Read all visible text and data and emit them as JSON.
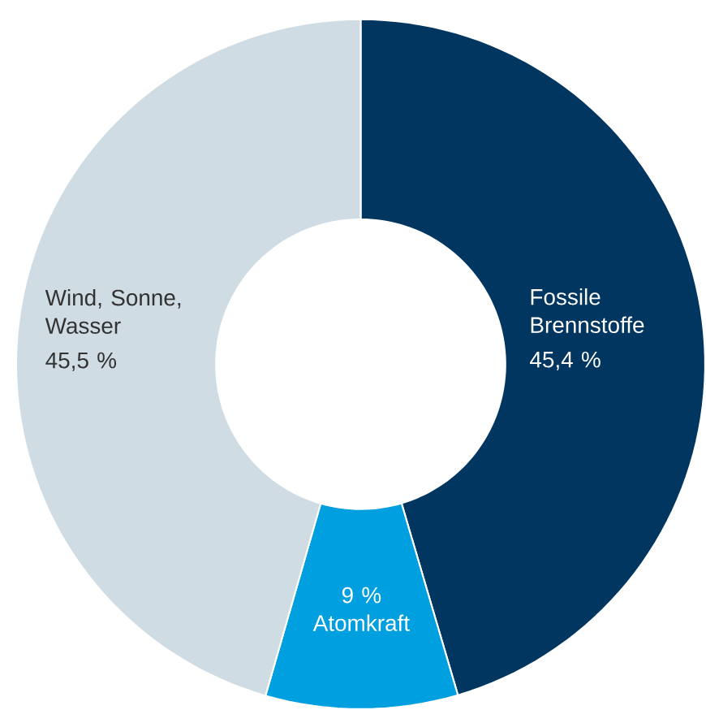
{
  "chart_data": {
    "type": "donut",
    "categories": [
      "Fossile Brennstoffe",
      "Atomkraft",
      "Wind, Sonne, Wasser"
    ],
    "values": [
      45.4,
      9,
      45.5
    ],
    "value_labels": [
      "45,4 %",
      "9 %",
      "45,5 %"
    ],
    "colors": [
      "#003660",
      "#009fe0",
      "#d0dce4"
    ]
  }
}
